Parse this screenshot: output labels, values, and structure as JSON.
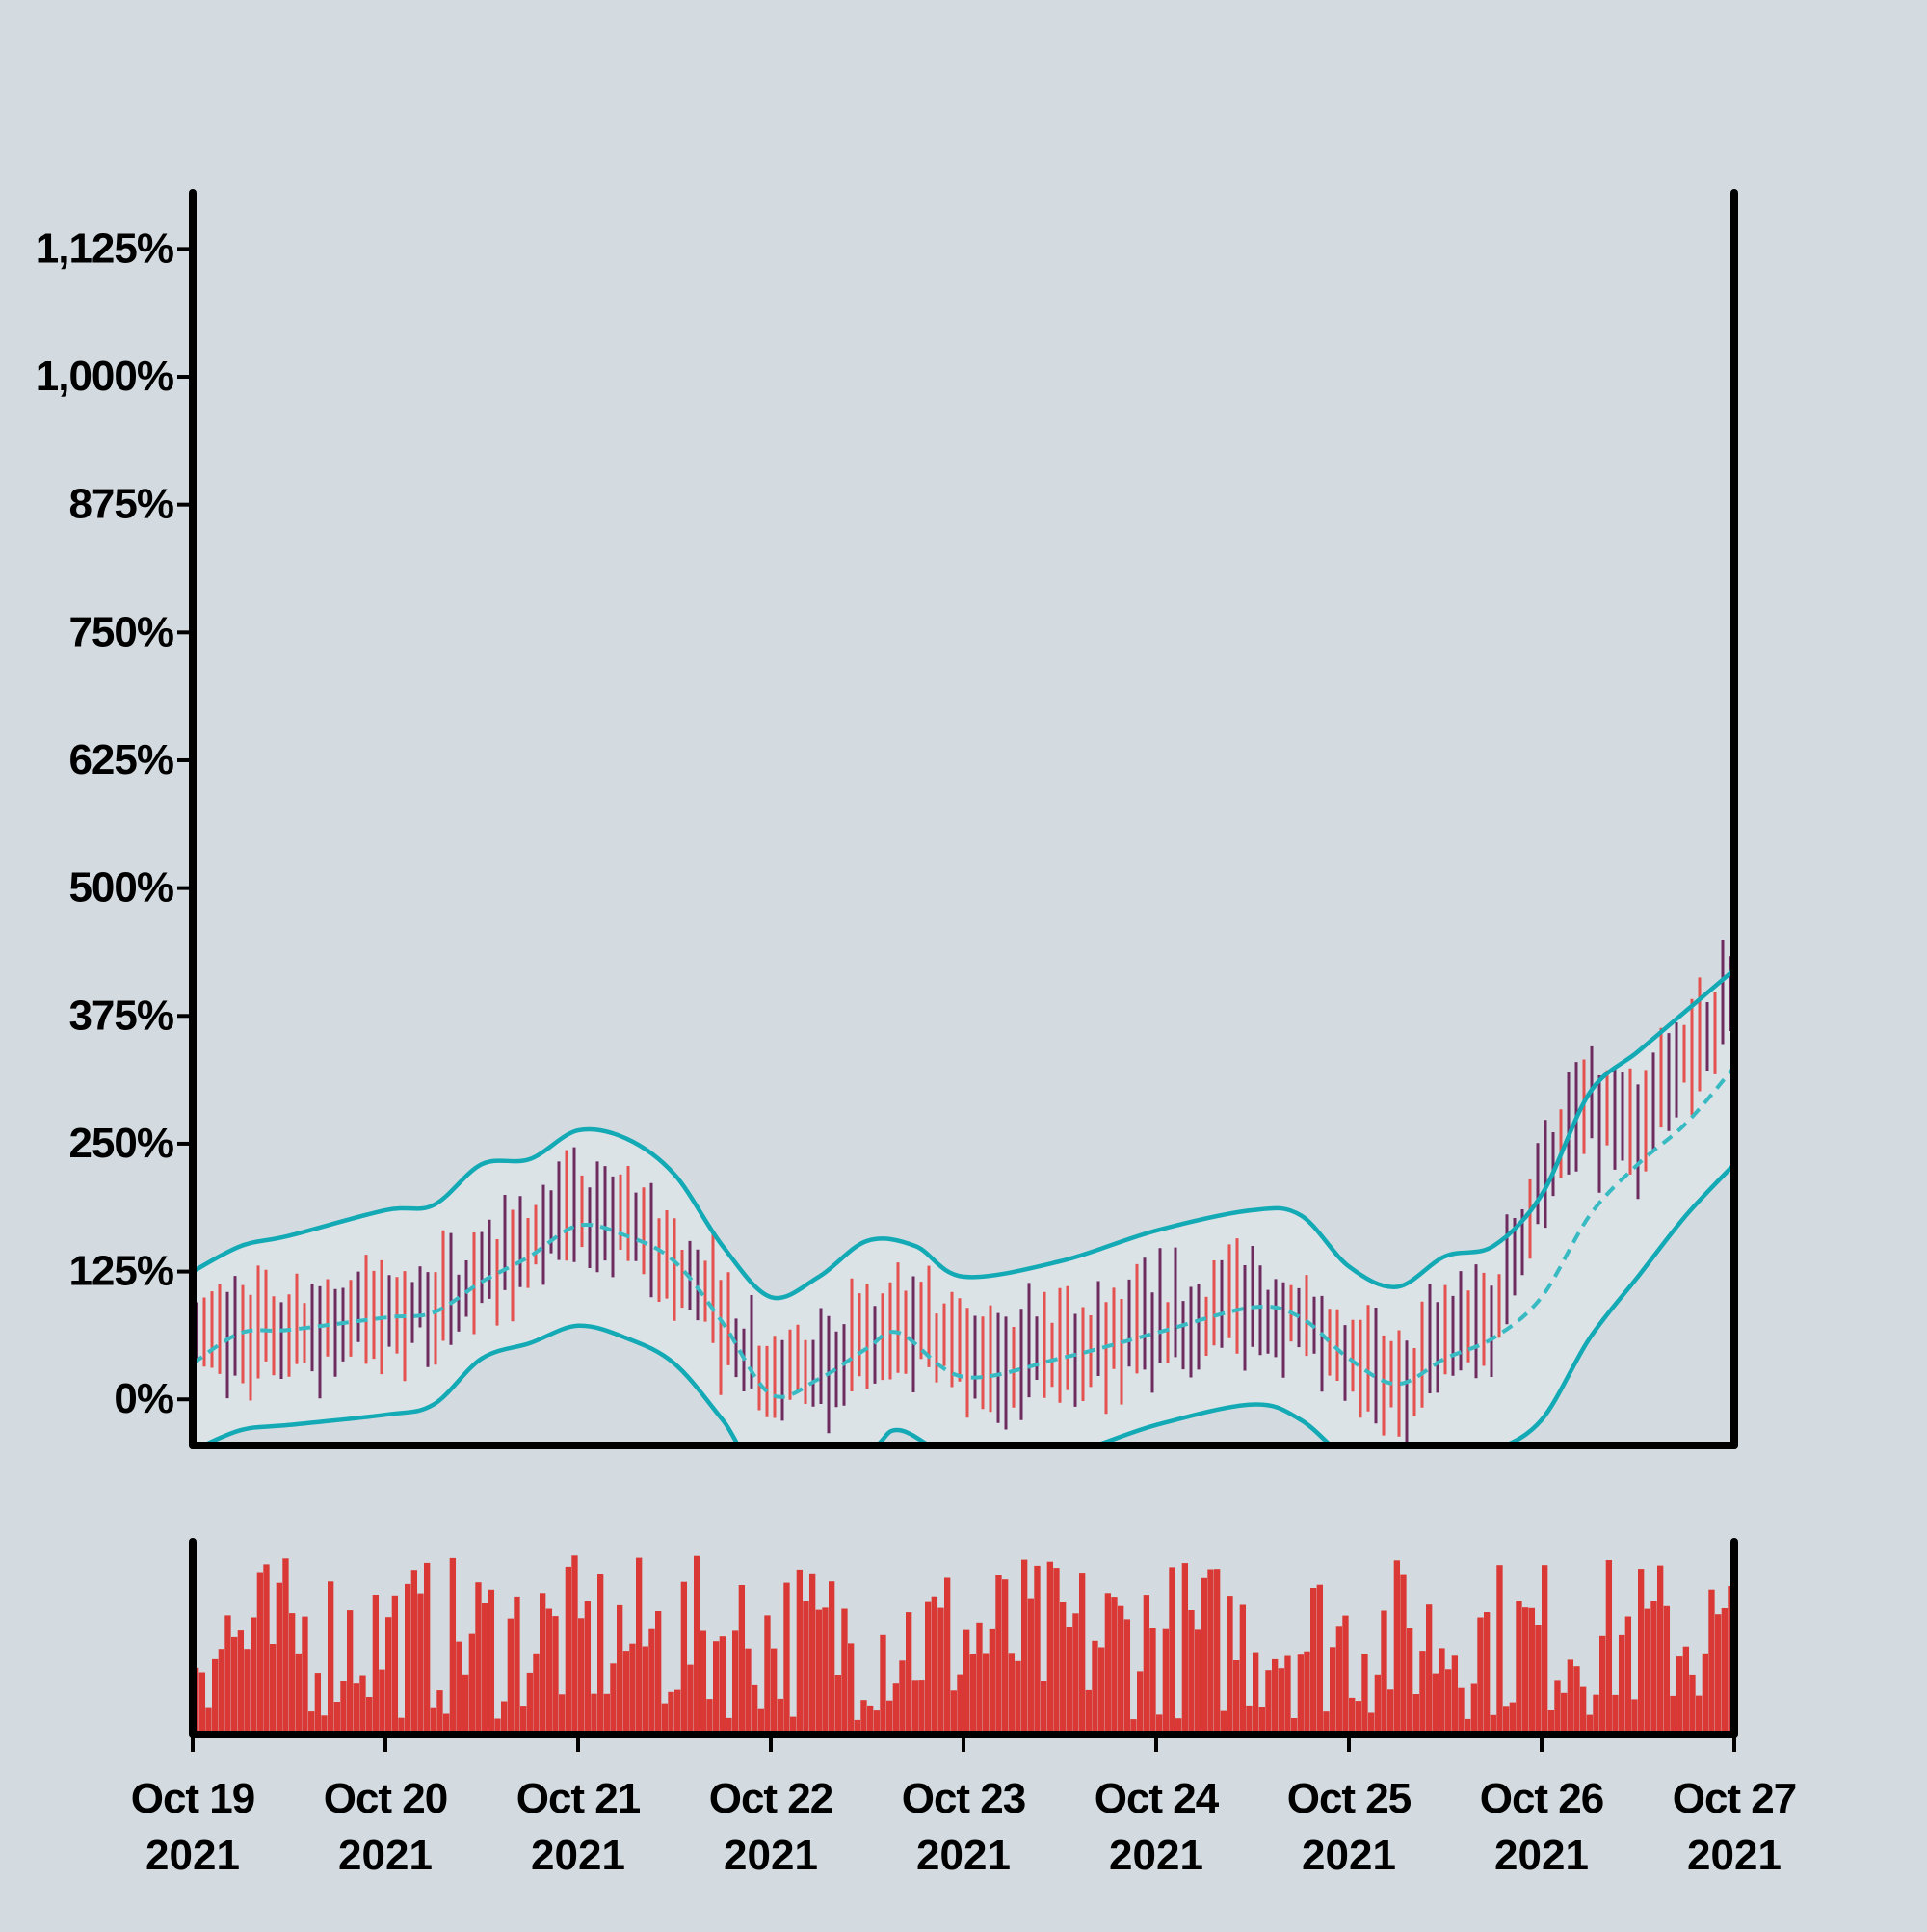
{
  "chart_data": {
    "type": "ohlc",
    "title": "",
    "xlabel": "",
    "ylabel": "",
    "y_unit": "%",
    "ylim": [
      -45,
      1180
    ],
    "y_ticks": [
      0,
      125,
      250,
      375,
      500,
      625,
      750,
      875,
      1000,
      1125
    ],
    "y_tick_labels": [
      "0%",
      "125%",
      "250%",
      "375%",
      "500%",
      "625%",
      "750%",
      "875%",
      "1,000%",
      "1,125%"
    ],
    "x_range": [
      "2021-10-19",
      "2021-10-27"
    ],
    "x_tick_labels": [
      {
        "date": "2021-10-19",
        "month_day": "Oct 19",
        "year": "2021"
      },
      {
        "date": "2021-10-20",
        "month_day": "Oct 20",
        "year": "2021"
      },
      {
        "date": "2021-10-21",
        "month_day": "Oct 21",
        "year": "2021"
      },
      {
        "date": "2021-10-22",
        "month_day": "Oct 22",
        "year": "2021"
      },
      {
        "date": "2021-10-23",
        "month_day": "Oct 23",
        "year": "2021"
      },
      {
        "date": "2021-10-24",
        "month_day": "Oct 24",
        "year": "2021"
      },
      {
        "date": "2021-10-25",
        "month_day": "Oct 25",
        "year": "2021"
      },
      {
        "date": "2021-10-26",
        "month_day": "Oct 26",
        "year": "2021"
      },
      {
        "date": "2021-10-27",
        "month_day": "Oct 27",
        "year": "2021"
      }
    ],
    "price_trend": [
      {
        "date": "2021-10-19T00:00",
        "value": 55
      },
      {
        "date": "2021-10-19T12:00",
        "value": 65
      },
      {
        "date": "2021-10-20T00:00",
        "value": 80
      },
      {
        "date": "2021-10-20T08:00",
        "value": 90
      },
      {
        "date": "2021-10-20T16:00",
        "value": 140
      },
      {
        "date": "2021-10-21T00:00",
        "value": 175
      },
      {
        "date": "2021-10-21T08:00",
        "value": 160
      },
      {
        "date": "2021-10-21T16:00",
        "value": 95
      },
      {
        "date": "2021-10-22T00:00",
        "value": 10
      },
      {
        "date": "2021-10-22T04:00",
        "value": 30
      },
      {
        "date": "2021-10-22T12:00",
        "value": 50
      },
      {
        "date": "2021-10-22T18:00",
        "value": 65
      },
      {
        "date": "2021-10-23T00:00",
        "value": 40
      },
      {
        "date": "2021-10-23T12:00",
        "value": 45
      },
      {
        "date": "2021-10-24T00:00",
        "value": 65
      },
      {
        "date": "2021-10-24T12:00",
        "value": 90
      },
      {
        "date": "2021-10-24T18:00",
        "value": 70
      },
      {
        "date": "2021-10-25T00:00",
        "value": 30
      },
      {
        "date": "2021-10-25T06:00",
        "value": 10
      },
      {
        "date": "2021-10-25T12:00",
        "value": 55
      },
      {
        "date": "2021-10-25T18:00",
        "value": 75
      },
      {
        "date": "2021-10-26T00:00",
        "value": 220
      },
      {
        "date": "2021-10-26T06:00",
        "value": 280
      },
      {
        "date": "2021-10-26T12:00",
        "value": 255
      },
      {
        "date": "2021-10-26T18:00",
        "value": 330
      },
      {
        "date": "2021-10-27T00:00",
        "value": 395
      }
    ],
    "middle_band": [
      {
        "date": "2021-10-19T00:00",
        "value": 35
      },
      {
        "date": "2021-10-19T06:00",
        "value": 65
      },
      {
        "date": "2021-10-19T12:00",
        "value": 68
      },
      {
        "date": "2021-10-20T00:00",
        "value": 80
      },
      {
        "date": "2021-10-20T06:00",
        "value": 85
      },
      {
        "date": "2021-10-20T12:00",
        "value": 115
      },
      {
        "date": "2021-10-20T18:00",
        "value": 140
      },
      {
        "date": "2021-10-21T00:00",
        "value": 170
      },
      {
        "date": "2021-10-21T06:00",
        "value": 160
      },
      {
        "date": "2021-10-21T12:00",
        "value": 135
      },
      {
        "date": "2021-10-21T18:00",
        "value": 75
      },
      {
        "date": "2021-10-22T00:00",
        "value": 5
      },
      {
        "date": "2021-10-22T06:00",
        "value": 20
      },
      {
        "date": "2021-10-22T12:00",
        "value": 50
      },
      {
        "date": "2021-10-22T16:00",
        "value": 65
      },
      {
        "date": "2021-10-23T00:00",
        "value": 22
      },
      {
        "date": "2021-10-23T12:00",
        "value": 40
      },
      {
        "date": "2021-10-24T00:00",
        "value": 65
      },
      {
        "date": "2021-10-24T12:00",
        "value": 90
      },
      {
        "date": "2021-10-24T18:00",
        "value": 80
      },
      {
        "date": "2021-10-25T00:00",
        "value": 40
      },
      {
        "date": "2021-10-25T06:00",
        "value": 15
      },
      {
        "date": "2021-10-25T12:00",
        "value": 40
      },
      {
        "date": "2021-10-25T18:00",
        "value": 60
      },
      {
        "date": "2021-10-26T00:00",
        "value": 100
      },
      {
        "date": "2021-10-26T06:00",
        "value": 180
      },
      {
        "date": "2021-10-26T12:00",
        "value": 230
      },
      {
        "date": "2021-10-26T18:00",
        "value": 270
      },
      {
        "date": "2021-10-27T00:00",
        "value": 325
      }
    ],
    "upper_band": [
      {
        "date": "2021-10-19T00:00",
        "value": 125
      },
      {
        "date": "2021-10-19T06:00",
        "value": 150
      },
      {
        "date": "2021-10-19T12:00",
        "value": 160
      },
      {
        "date": "2021-10-20T00:00",
        "value": 185
      },
      {
        "date": "2021-10-20T06:00",
        "value": 190
      },
      {
        "date": "2021-10-20T12:00",
        "value": 230
      },
      {
        "date": "2021-10-20T18:00",
        "value": 235
      },
      {
        "date": "2021-10-21T00:00",
        "value": 263
      },
      {
        "date": "2021-10-21T06:00",
        "value": 255
      },
      {
        "date": "2021-10-21T12:00",
        "value": 220
      },
      {
        "date": "2021-10-21T18:00",
        "value": 150
      },
      {
        "date": "2021-10-22T00:00",
        "value": 100
      },
      {
        "date": "2021-10-22T06:00",
        "value": 120
      },
      {
        "date": "2021-10-22T12:00",
        "value": 155
      },
      {
        "date": "2021-10-22T18:00",
        "value": 150
      },
      {
        "date": "2021-10-23T00:00",
        "value": 120
      },
      {
        "date": "2021-10-23T12:00",
        "value": 135
      },
      {
        "date": "2021-10-24T00:00",
        "value": 165
      },
      {
        "date": "2021-10-24T12:00",
        "value": 185
      },
      {
        "date": "2021-10-24T18:00",
        "value": 180
      },
      {
        "date": "2021-10-25T00:00",
        "value": 130
      },
      {
        "date": "2021-10-25T06:00",
        "value": 110
      },
      {
        "date": "2021-10-25T12:00",
        "value": 140
      },
      {
        "date": "2021-10-25T18:00",
        "value": 150
      },
      {
        "date": "2021-10-26T00:00",
        "value": 200
      },
      {
        "date": "2021-10-26T06:00",
        "value": 300
      },
      {
        "date": "2021-10-26T12:00",
        "value": 340
      },
      {
        "date": "2021-10-26T18:00",
        "value": 380
      },
      {
        "date": "2021-10-27T00:00",
        "value": 420
      }
    ],
    "lower_band": [
      {
        "date": "2021-10-19T00:00",
        "value": -50
      },
      {
        "date": "2021-10-19T06:00",
        "value": -30
      },
      {
        "date": "2021-10-19T12:00",
        "value": -25
      },
      {
        "date": "2021-10-20T00:00",
        "value": -15
      },
      {
        "date": "2021-10-20T06:00",
        "value": -5
      },
      {
        "date": "2021-10-20T12:00",
        "value": 40
      },
      {
        "date": "2021-10-20T18:00",
        "value": 55
      },
      {
        "date": "2021-10-21T00:00",
        "value": 72
      },
      {
        "date": "2021-10-21T06:00",
        "value": 60
      },
      {
        "date": "2021-10-21T12:00",
        "value": 35
      },
      {
        "date": "2021-10-21T18:00",
        "value": -20
      },
      {
        "date": "2021-10-22T00:00",
        "value": -80
      },
      {
        "date": "2021-10-22T12:00",
        "value": -50
      },
      {
        "date": "2021-10-22T16:00",
        "value": -30
      },
      {
        "date": "2021-10-23T00:00",
        "value": -60
      },
      {
        "date": "2021-10-23T12:00",
        "value": -55
      },
      {
        "date": "2021-10-24T00:00",
        "value": -25
      },
      {
        "date": "2021-10-24T12:00",
        "value": -5
      },
      {
        "date": "2021-10-24T18:00",
        "value": -20
      },
      {
        "date": "2021-10-25T00:00",
        "value": -60
      },
      {
        "date": "2021-10-25T06:00",
        "value": -80
      },
      {
        "date": "2021-10-25T12:00",
        "value": -60
      },
      {
        "date": "2021-10-25T18:00",
        "value": -50
      },
      {
        "date": "2021-10-26T00:00",
        "value": -20
      },
      {
        "date": "2021-10-26T06:00",
        "value": 60
      },
      {
        "date": "2021-10-26T12:00",
        "value": 120
      },
      {
        "date": "2021-10-26T18:00",
        "value": 180
      },
      {
        "date": "2021-10-27T00:00",
        "value": 230
      }
    ],
    "volume": {
      "visible": true,
      "color": "#da3834"
    },
    "colors": {
      "background": "#d3dbe0",
      "band_fill": "#dbe3e7",
      "band_line": "#13aab5",
      "middle_line": "#38bac3",
      "bar_up": "#e4524f",
      "bar_down": "#6e2b5f",
      "volume": "#da3834",
      "axis": "#000000"
    },
    "grid": false,
    "legend": "none"
  }
}
